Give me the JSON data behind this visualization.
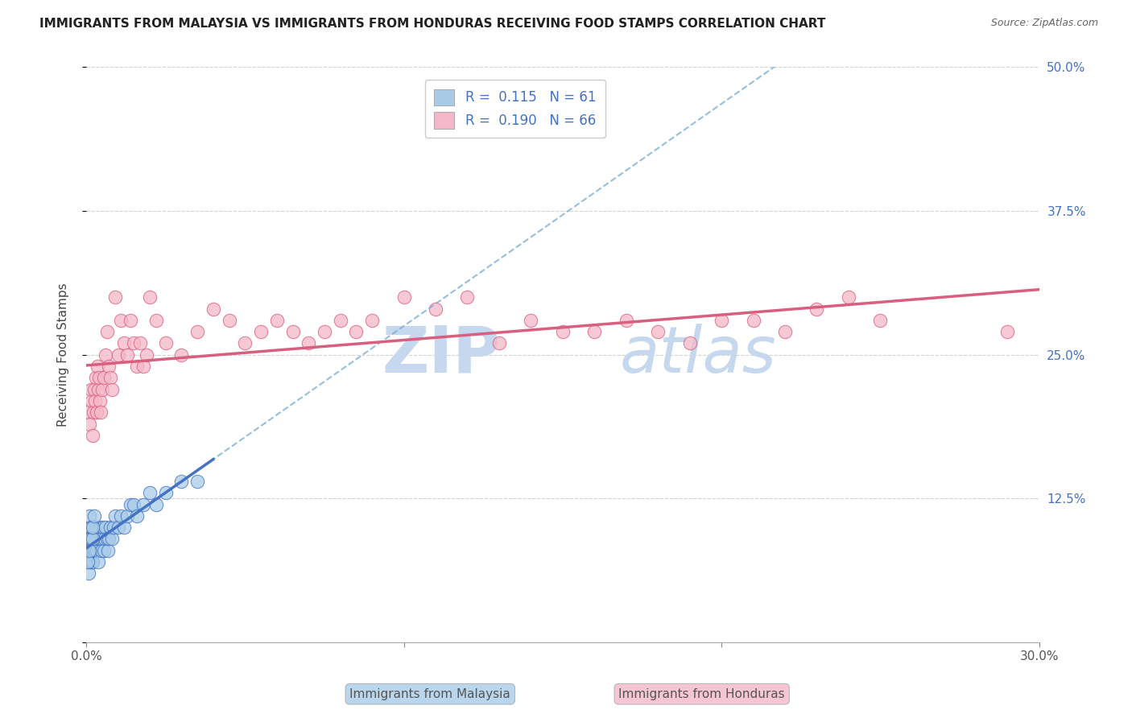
{
  "title": "IMMIGRANTS FROM MALAYSIA VS IMMIGRANTS FROM HONDURAS RECEIVING FOOD STAMPS CORRELATION CHART",
  "source": "Source: ZipAtlas.com",
  "ylabel": "Receiving Food Stamps",
  "xmin": 0.0,
  "xmax": 30.0,
  "ymin": 0.0,
  "ymax": 50.0,
  "yticks": [
    0,
    12.5,
    25.0,
    37.5,
    50.0
  ],
  "ytick_labels": [
    "",
    "12.5%",
    "25.0%",
    "37.5%",
    "50.0%"
  ],
  "r_malaysia": 0.115,
  "n_malaysia": 61,
  "r_honduras": 0.19,
  "n_honduras": 66,
  "color_malaysia": "#a8cce8",
  "color_honduras": "#f4b8c8",
  "color_malaysia_line": "#4472c4",
  "color_honduras_line": "#d95f7f",
  "watermark_zip": "ZIP",
  "watermark_atlas": "atlas",
  "watermark_color_zip": "#c5d8ee",
  "watermark_color_atlas": "#c5d8ee",
  "malaysia_x": [
    0.05,
    0.07,
    0.08,
    0.1,
    0.1,
    0.12,
    0.13,
    0.15,
    0.15,
    0.17,
    0.18,
    0.2,
    0.2,
    0.22,
    0.23,
    0.25,
    0.25,
    0.27,
    0.28,
    0.3,
    0.3,
    0.32,
    0.35,
    0.38,
    0.4,
    0.42,
    0.45,
    0.48,
    0.5,
    0.52,
    0.55,
    0.58,
    0.6,
    0.65,
    0.68,
    0.7,
    0.75,
    0.8,
    0.85,
    0.9,
    1.0,
    1.1,
    1.2,
    1.3,
    1.4,
    1.5,
    1.6,
    1.8,
    2.0,
    2.2,
    2.5,
    3.0,
    3.5,
    0.06,
    0.09,
    0.11,
    0.14,
    0.16,
    0.19,
    0.21,
    0.24
  ],
  "malaysia_y": [
    7,
    8,
    6,
    9,
    11,
    7,
    8,
    9,
    10,
    7,
    8,
    7,
    9,
    8,
    10,
    9,
    8,
    9,
    8,
    9,
    10,
    8,
    9,
    7,
    9,
    10,
    9,
    8,
    9,
    10,
    8,
    9,
    10,
    9,
    8,
    9,
    10,
    9,
    10,
    11,
    10,
    11,
    10,
    11,
    12,
    12,
    11,
    12,
    13,
    12,
    13,
    14,
    14,
    7,
    9,
    8,
    9,
    10,
    9,
    10,
    11
  ],
  "honduras_x": [
    0.05,
    0.1,
    0.15,
    0.18,
    0.2,
    0.22,
    0.25,
    0.28,
    0.3,
    0.33,
    0.35,
    0.38,
    0.4,
    0.43,
    0.45,
    0.5,
    0.55,
    0.6,
    0.65,
    0.7,
    0.75,
    0.8,
    0.9,
    1.0,
    1.1,
    1.2,
    1.3,
    1.4,
    1.5,
    1.6,
    1.7,
    1.8,
    1.9,
    2.0,
    2.2,
    2.5,
    3.0,
    3.5,
    4.0,
    4.5,
    5.0,
    5.5,
    6.0,
    6.5,
    7.0,
    7.5,
    8.0,
    8.5,
    9.0,
    10.0,
    11.0,
    12.0,
    13.0,
    14.0,
    15.0,
    16.0,
    17.0,
    18.0,
    19.0,
    20.0,
    21.0,
    22.0,
    23.0,
    24.0,
    25.0,
    29.0
  ],
  "honduras_y": [
    20,
    19,
    22,
    21,
    18,
    20,
    22,
    21,
    23,
    20,
    24,
    22,
    23,
    21,
    20,
    22,
    23,
    25,
    27,
    24,
    23,
    22,
    30,
    25,
    28,
    26,
    25,
    28,
    26,
    24,
    26,
    24,
    25,
    30,
    28,
    26,
    25,
    27,
    29,
    28,
    26,
    27,
    28,
    27,
    26,
    27,
    28,
    27,
    28,
    30,
    29,
    30,
    26,
    28,
    27,
    27,
    28,
    27,
    26,
    28,
    28,
    27,
    29,
    30,
    28,
    27
  ]
}
